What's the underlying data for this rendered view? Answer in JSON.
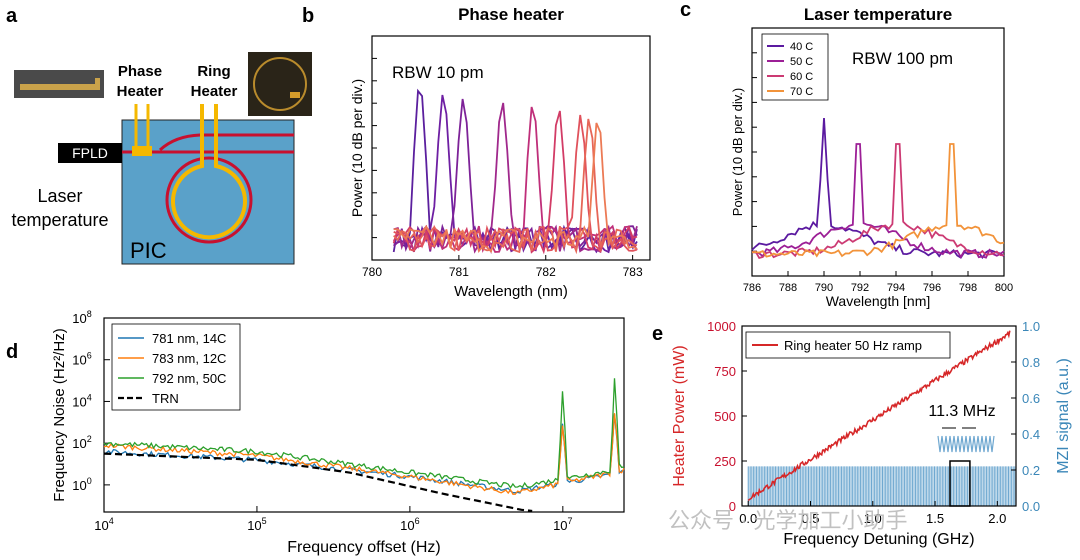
{
  "panels": {
    "a": {
      "letter": "a"
    },
    "b": {
      "letter": "b"
    },
    "c": {
      "letter": "c"
    },
    "d": {
      "letter": "d"
    },
    "e": {
      "letter": "e"
    }
  },
  "schematic": {
    "phase_heater_label_1": "Phase",
    "phase_heater_label_2": "Heater",
    "ring_heater_label_1": "Ring",
    "ring_heater_label_2": "Heater",
    "fpld_label": "FPLD",
    "laser_temp_label_1": "Laser",
    "laser_temp_label_2": "temperature",
    "pic_label": "PIC",
    "colors": {
      "pic": "#5aa1c9",
      "waveguide": "#c8102e",
      "heater": "#f5b800"
    }
  },
  "watermark": "公众号 · 光学加工小助手",
  "chart_data": [
    {
      "id": "b",
      "type": "line",
      "title": "Phase heater",
      "annotation": "RBW 10 pm",
      "xlabel": "Wavelength (nm)",
      "ylabel": "Power (10 dB per div.)",
      "xlim": [
        780,
        783.2
      ],
      "xticks": [
        "780",
        "781",
        "782",
        "783"
      ],
      "ylim": [
        0,
        10
      ],
      "grid": false,
      "peaks_nm": [
        780.55,
        780.82,
        781.05,
        781.5,
        781.85,
        782.15,
        782.4,
        782.5,
        782.6
      ],
      "peak_colors": [
        "#5b1f9e",
        "#6e1fa3",
        "#7d2298",
        "#a0288c",
        "#bf2f7a",
        "#d23c66",
        "#e0525c",
        "#e66658",
        "#ec7a55"
      ]
    },
    {
      "id": "c",
      "type": "line",
      "title": "Laser temperature",
      "annotation": "RBW 100 pm",
      "xlabel": "Wavelength [nm]",
      "ylabel": "Power (10 dB per div.)",
      "xlim": [
        786,
        800
      ],
      "xticks": [
        "786",
        "788",
        "790",
        "792",
        "794",
        "796",
        "798",
        "800"
      ],
      "ylim": [
        0,
        10
      ],
      "grid": false,
      "series": [
        {
          "name": "40 C",
          "peak_nm": 790.0,
          "color": "#5b1aa0"
        },
        {
          "name": "50 C",
          "peak_nm": 791.9,
          "color": "#9c1f96"
        },
        {
          "name": "60 C",
          "peak_nm": 794.1,
          "color": "#cc3a73"
        },
        {
          "name": "70 C",
          "peak_nm": 797.1,
          "color": "#f2933a"
        }
      ],
      "legend": "top-left"
    },
    {
      "id": "d",
      "type": "line",
      "xlabel": "Frequency offset (Hz)",
      "ylabel": "Frequency Noise (Hz²/Hz)",
      "xscale": "log",
      "yscale": "log",
      "xlim_exp": [
        4,
        7.4
      ],
      "ylim_exp": [
        -1.3,
        8
      ],
      "xtick_exps": [
        4,
        5,
        6,
        7
      ],
      "ytick_exps": [
        0,
        2,
        4,
        6,
        8
      ],
      "series": [
        {
          "name": "781 nm, 14C",
          "color": "#1f77b4",
          "spur_exps": [
            7.0,
            7.34
          ],
          "noise_at": [
            [
              4,
              1.6
            ],
            [
              5,
              1.2
            ],
            [
              6,
              0.4
            ],
            [
              6.7,
              -0.3
            ],
            [
              7.4,
              0.6
            ]
          ]
        },
        {
          "name": "783 nm, 12C",
          "color": "#ff7f0e",
          "spur_exps": [
            7.0,
            7.34
          ],
          "noise_at": [
            [
              4,
              1.9
            ],
            [
              5,
              1.4
            ],
            [
              6,
              0.4
            ],
            [
              6.7,
              -0.4
            ],
            [
              7.4,
              0.7
            ]
          ]
        },
        {
          "name": "792 nm, 50C",
          "color": "#2ca02c",
          "spur_exps": [
            7.0,
            7.34
          ],
          "noise_at": [
            [
              4,
              2.0
            ],
            [
              5,
              1.6
            ],
            [
              6,
              0.6
            ],
            [
              6.7,
              -0.1
            ],
            [
              7.4,
              0.8
            ]
          ]
        },
        {
          "name": "TRN",
          "color": "#000000",
          "dashed": true,
          "noise_at": [
            [
              4,
              1.5
            ],
            [
              5,
              1.2
            ],
            [
              5.6,
              0.6
            ],
            [
              6.2,
              -0.4
            ],
            [
              6.8,
              -1.3
            ]
          ]
        }
      ],
      "legend": "top-left"
    },
    {
      "id": "e",
      "type": "line",
      "xlabel": "Frequency Detuning (GHz)",
      "ylabel_left": "Heater Power (mW)",
      "ylabel_right": "MZI signal (a.u.)",
      "xlim": [
        -0.05,
        2.15
      ],
      "xticks": [
        "0.0",
        "0.5",
        "1.0",
        "1.5",
        "2.0"
      ],
      "yticks_left": [
        "0",
        "250",
        "500",
        "750",
        "1000"
      ],
      "yticks_right": [
        "0.0",
        "0.2",
        "0.4",
        "0.6",
        "0.8",
        "1.0"
      ],
      "ylim_left": [
        0,
        1000
      ],
      "ylim_right": [
        0,
        1.0
      ],
      "series": [
        {
          "name": "Ring heater 50 Hz ramp",
          "color": "#d62728",
          "x_start": 0.0,
          "x_end": 2.1,
          "y_start": 40,
          "y_end": 960
        }
      ],
      "mzi_color": "#6fa8d0",
      "mzi_level": 0.22,
      "annotation": "11.3 MHz",
      "zoom_box_x": [
        1.62,
        1.78
      ],
      "legend": "top-left"
    }
  ]
}
